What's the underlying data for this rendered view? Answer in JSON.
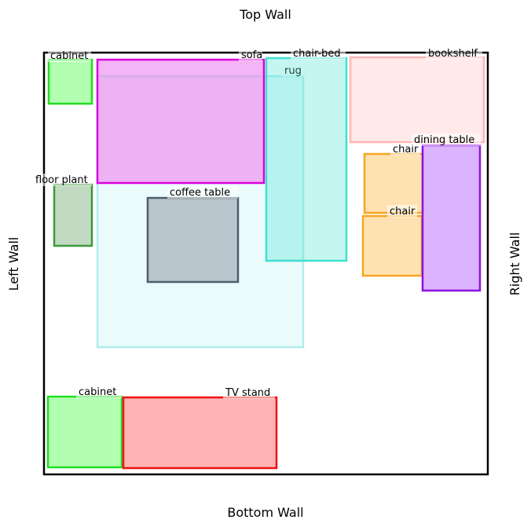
{
  "walls": {
    "top": "Top Wall",
    "bottom": "Bottom Wall",
    "left": "Left Wall",
    "right": "Right Wall"
  },
  "furniture": [
    {
      "id": "rug",
      "label": "rug",
      "fill": "#afeeee",
      "stroke": "#afeeee",
      "fill_opacity": 0.25
    },
    {
      "id": "sofa",
      "label": "sofa",
      "fill": "#ee82ee",
      "stroke": "#dd00dd",
      "fill_opacity": 0.6
    },
    {
      "id": "chair-bed",
      "label": "chair-bed",
      "fill": "#40e0d0",
      "stroke": "#40e0d0",
      "fill_opacity": 0.3
    },
    {
      "id": "bookshelf",
      "label": "bookshelf",
      "fill": "#ffc0c0",
      "stroke": "#ffb6b6",
      "fill_opacity": 0.35
    },
    {
      "id": "cabinet-top",
      "label": "cabinet",
      "fill": "#7fff7f",
      "stroke": "#22dd22",
      "fill_opacity": 0.6
    },
    {
      "id": "floor-plant",
      "label": "floor plant",
      "fill": "#8fbc8f",
      "stroke": "#3a9a3a",
      "fill_opacity": 0.55
    },
    {
      "id": "coffee-table",
      "label": "coffee table",
      "fill": "#a9b4bf",
      "stroke": "#4f5d6b",
      "fill_opacity": 0.75
    },
    {
      "id": "chair-upper",
      "label": "chair",
      "fill": "#ffd591",
      "stroke": "#f5a623",
      "fill_opacity": 0.7
    },
    {
      "id": "chair-lower",
      "label": "chair",
      "fill": "#ffd591",
      "stroke": "#f5a623",
      "fill_opacity": 0.7
    },
    {
      "id": "dining-table",
      "label": "dining table",
      "fill": "#c98aff",
      "stroke": "#9010e0",
      "fill_opacity": 0.65
    },
    {
      "id": "cabinet-bottom",
      "label": "cabinet",
      "fill": "#7fff7f",
      "stroke": "#22dd22",
      "fill_opacity": 0.6
    },
    {
      "id": "tv-stand",
      "label": "TV stand",
      "fill": "#ff8080",
      "stroke": "#ee1111",
      "fill_opacity": 0.6
    }
  ]
}
